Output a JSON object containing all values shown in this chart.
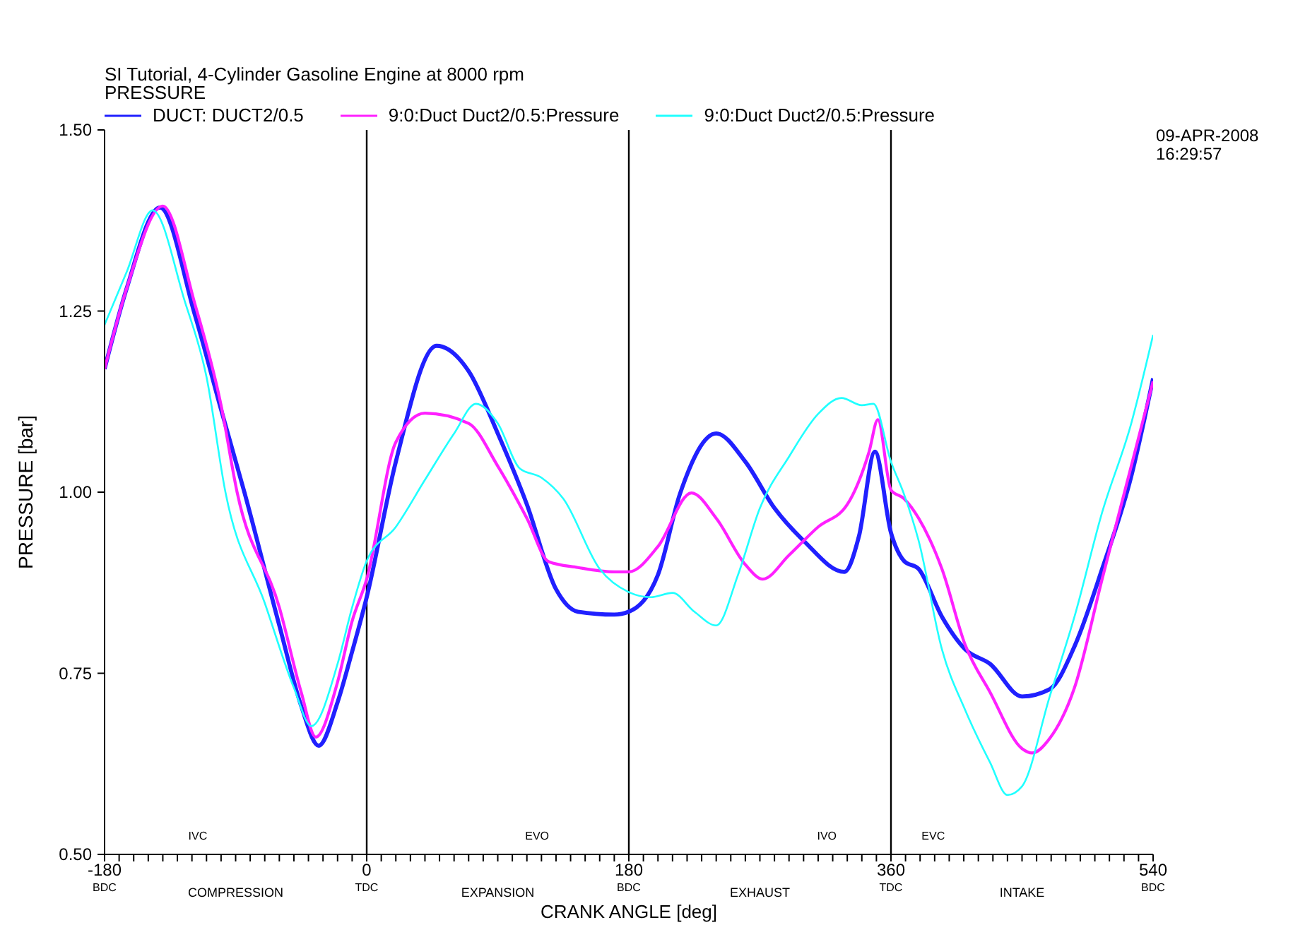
{
  "chart_data": {
    "type": "line",
    "title": "SI Tutorial, 4-Cylinder Gasoline Engine at 8000 rpm",
    "subtitle": "PRESSURE",
    "xlabel": "CRANK ANGLE  [deg]",
    "ylabel": "PRESSURE  [bar]",
    "xlim": [
      -180,
      540
    ],
    "ylim": [
      0.5,
      1.5
    ],
    "xticks": [
      {
        "value": -180,
        "label": "-180\nBDC"
      },
      {
        "value": -170,
        "label": null
      },
      {
        "value": -160,
        "label": null
      },
      {
        "value": -150,
        "label": null
      },
      {
        "value": -140,
        "label": null
      },
      {
        "value": -130,
        "label": null
      },
      {
        "value": -120,
        "label": null
      },
      {
        "value": -110,
        "label": null
      },
      {
        "value": -100,
        "label": null
      },
      {
        "value": -90,
        "label": null
      },
      {
        "value": -80,
        "label": null
      },
      {
        "value": -70,
        "label": null
      },
      {
        "value": -60,
        "label": null
      },
      {
        "value": -50,
        "label": null
      },
      {
        "value": -40,
        "label": null
      },
      {
        "value": -30,
        "label": null
      },
      {
        "value": -20,
        "label": null
      },
      {
        "value": -10,
        "label": null
      },
      {
        "value": 0,
        "label": "0\nTDC"
      },
      {
        "value": 10,
        "label": null
      },
      {
        "value": 20,
        "label": null
      },
      {
        "value": 30,
        "label": null
      },
      {
        "value": 40,
        "label": null
      },
      {
        "value": 50,
        "label": null
      },
      {
        "value": 60,
        "label": null
      },
      {
        "value": 70,
        "label": null
      },
      {
        "value": 80,
        "label": null
      },
      {
        "value": 90,
        "label": null
      },
      {
        "value": 100,
        "label": null
      },
      {
        "value": 110,
        "label": null
      },
      {
        "value": 120,
        "label": null
      },
      {
        "value": 130,
        "label": null
      },
      {
        "value": 140,
        "label": null
      },
      {
        "value": 150,
        "label": null
      },
      {
        "value": 160,
        "label": null
      },
      {
        "value": 170,
        "label": null
      },
      {
        "value": 180,
        "label": "180\nBDC"
      },
      {
        "value": 190,
        "label": null
      },
      {
        "value": 200,
        "label": null
      },
      {
        "value": 210,
        "label": null
      },
      {
        "value": 220,
        "label": null
      },
      {
        "value": 230,
        "label": null
      },
      {
        "value": 240,
        "label": null
      },
      {
        "value": 250,
        "label": null
      },
      {
        "value": 260,
        "label": null
      },
      {
        "value": 270,
        "label": null
      },
      {
        "value": 280,
        "label": null
      },
      {
        "value": 290,
        "label": null
      },
      {
        "value": 300,
        "label": null
      },
      {
        "value": 310,
        "label": null
      },
      {
        "value": 320,
        "label": null
      },
      {
        "value": 330,
        "label": null
      },
      {
        "value": 340,
        "label": null
      },
      {
        "value": 350,
        "label": null
      },
      {
        "value": 360,
        "label": "360\nTDC"
      },
      {
        "value": 370,
        "label": null
      },
      {
        "value": 380,
        "label": null
      },
      {
        "value": 390,
        "label": null
      },
      {
        "value": 400,
        "label": null
      },
      {
        "value": 410,
        "label": null
      },
      {
        "value": 420,
        "label": null
      },
      {
        "value": 430,
        "label": null
      },
      {
        "value": 440,
        "label": null
      },
      {
        "value": 450,
        "label": null
      },
      {
        "value": 460,
        "label": null
      },
      {
        "value": 470,
        "label": null
      },
      {
        "value": 480,
        "label": null
      },
      {
        "value": 490,
        "label": null
      },
      {
        "value": 500,
        "label": null
      },
      {
        "value": 510,
        "label": null
      },
      {
        "value": 520,
        "label": null
      },
      {
        "value": 530,
        "label": null
      },
      {
        "value": 540,
        "label": "540\nBDC"
      }
    ],
    "yticks": [
      {
        "value": 0.5,
        "label": "0.50"
      },
      {
        "value": 0.75,
        "label": "0.75"
      },
      {
        "value": 1.0,
        "label": "1.00"
      },
      {
        "value": 1.25,
        "label": "1.25"
      },
      {
        "value": 1.5,
        "label": "1.50"
      }
    ],
    "legend": "top left",
    "marker": "none",
    "line_style": "solid",
    "ref_lines": [
      {
        "axis": "x",
        "value": 0,
        "color": "#000000"
      },
      {
        "axis": "x",
        "value": 180,
        "color": "#000000"
      },
      {
        "axis": "x",
        "value": 360,
        "color": "#000000"
      }
    ],
    "annotations": [
      "IVC",
      "EVO",
      "IVO",
      "EVC",
      "COMPRESSION",
      "EXPANSION",
      "EXHAUST",
      "INTAKE",
      "09-APR-2008\n16:29:57"
    ],
    "series": [
      {
        "name": "DUCT: DUCT2/0.5",
        "color": "#2020ff",
        "x": [
          -180,
          -165,
          -142,
          -118,
          -100,
          -84,
          -60,
          -45,
          -33,
          -20,
          -10,
          0,
          20,
          48,
          70,
          90,
          110,
          130,
          145,
          170,
          180,
          200,
          215,
          240,
          260,
          280,
          300,
          328,
          338,
          349,
          360,
          369,
          379,
          395,
          411,
          428,
          450,
          469,
          486,
          505,
          525,
          540
        ],
        "values": [
          1.17,
          1.28,
          1.393,
          1.245,
          1.114,
          1.0,
          0.816,
          0.705,
          0.65,
          0.71,
          0.78,
          0.855,
          1.042,
          1.202,
          1.167,
          1.081,
          0.983,
          0.866,
          0.835,
          0.831,
          0.835,
          0.886,
          0.997,
          1.081,
          1.042,
          0.978,
          0.933,
          0.89,
          0.939,
          1.056,
          0.944,
          0.905,
          0.894,
          0.828,
          0.783,
          0.763,
          0.718,
          0.728,
          0.787,
          0.894,
          1.022,
          1.157
        ]
      },
      {
        "name": "9:0:Duct Duct2/0.5:Pressure",
        "color": "#ff20ff",
        "x": [
          -180,
          -165,
          -140,
          -118,
          -100,
          -89,
          -60,
          -45,
          -35,
          -20,
          -10,
          0,
          20,
          40,
          70,
          90,
          110,
          125,
          145,
          170,
          180,
          200,
          223,
          240,
          260,
          272,
          290,
          310,
          330,
          345,
          351,
          360,
          369,
          379,
          395,
          411,
          428,
          450,
          457,
          469,
          486,
          505,
          525,
          540
        ],
        "values": [
          1.17,
          1.28,
          1.395,
          1.26,
          1.12,
          1.0,
          0.841,
          0.724,
          0.662,
          0.738,
          0.822,
          0.88,
          1.069,
          1.109,
          1.095,
          1.036,
          0.964,
          0.904,
          0.896,
          0.89,
          0.89,
          0.925,
          0.999,
          0.964,
          0.9,
          0.88,
          0.913,
          0.952,
          0.983,
          1.056,
          1.1,
          1.003,
          0.991,
          0.964,
          0.894,
          0.789,
          0.724,
          0.646,
          0.64,
          0.66,
          0.73,
          0.88,
          1.036,
          1.153
        ]
      },
      {
        "name": "9:0:Duct Duct2/0.5:Pressure",
        "color": "#20ffff",
        "x": [
          -180,
          -165,
          -147,
          -125,
          -110,
          -97,
          -70,
          -50,
          -38,
          -20,
          -10,
          0,
          20,
          40,
          60,
          75,
          90,
          105,
          120,
          135,
          160,
          180,
          195,
          210,
          225,
          240,
          255,
          270,
          290,
          310,
          326,
          340,
          348,
          360,
          369,
          379,
          395,
          411,
          428,
          440,
          450,
          469,
          486,
          505,
          525,
          540
        ],
        "values": [
          1.231,
          1.303,
          1.389,
          1.264,
          1.159,
          1.0,
          0.847,
          0.73,
          0.677,
          0.763,
          0.841,
          0.905,
          0.952,
          1.017,
          1.081,
          1.122,
          1.095,
          1.033,
          1.02,
          0.991,
          0.894,
          0.862,
          0.855,
          0.861,
          0.835,
          0.816,
          0.886,
          0.978,
          1.049,
          1.108,
          1.13,
          1.12,
          1.122,
          1.042,
          0.997,
          0.933,
          0.783,
          0.699,
          0.627,
          0.582,
          0.594,
          0.718,
          0.828,
          0.972,
          1.095,
          1.217
        ]
      }
    ]
  }
}
